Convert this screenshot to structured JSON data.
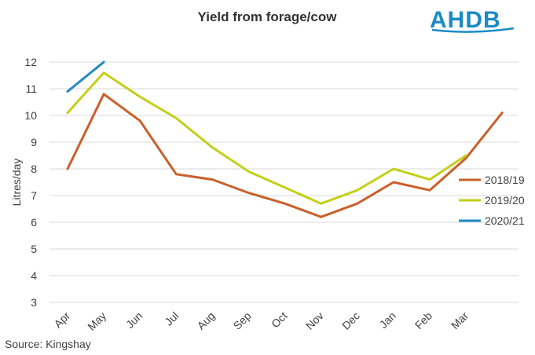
{
  "chart_data": {
    "type": "line",
    "title": "Yield from forage/cow",
    "xlabel": "",
    "ylabel": "Litres/day",
    "categories": [
      "Apr",
      "May",
      "Jun",
      "Jul",
      "Aug",
      "Sep",
      "Oct",
      "Nov",
      "Dec",
      "Jan",
      "Feb",
      "Mar"
    ],
    "ylim": [
      3,
      12
    ],
    "yticks": [
      3,
      4,
      5,
      6,
      7,
      8,
      9,
      10,
      11,
      12
    ],
    "grid": "horizontal",
    "legend_position": "right",
    "series": [
      {
        "name": "2018/19",
        "color": "#c9602a",
        "x": [
          0,
          1,
          2,
          3,
          4,
          5,
          6,
          7,
          8,
          9,
          10,
          11,
          12
        ],
        "values": [
          8.0,
          10.8,
          9.8,
          7.8,
          7.6,
          7.1,
          6.7,
          6.2,
          6.7,
          7.5,
          7.2,
          8.4,
          10.1
        ]
      },
      {
        "name": "2019/20",
        "color": "#c3d019",
        "x": [
          0,
          1,
          2,
          3,
          4,
          5,
          6,
          7,
          8,
          9,
          10,
          11
        ],
        "values": [
          10.1,
          11.6,
          10.7,
          9.9,
          8.8,
          7.9,
          7.3,
          6.7,
          7.2,
          8.0,
          7.6,
          8.5
        ]
      },
      {
        "name": "2020/21",
        "color": "#1f8bc6",
        "x": [
          0,
          1
        ],
        "values": [
          10.9,
          12.0
        ]
      }
    ]
  },
  "source": "Source: Kingshay",
  "logo_text": "AHDB",
  "colors": {
    "gridline": "#d9d9d9",
    "axis_text": "#404040",
    "logo": "#1a8ac8"
  }
}
